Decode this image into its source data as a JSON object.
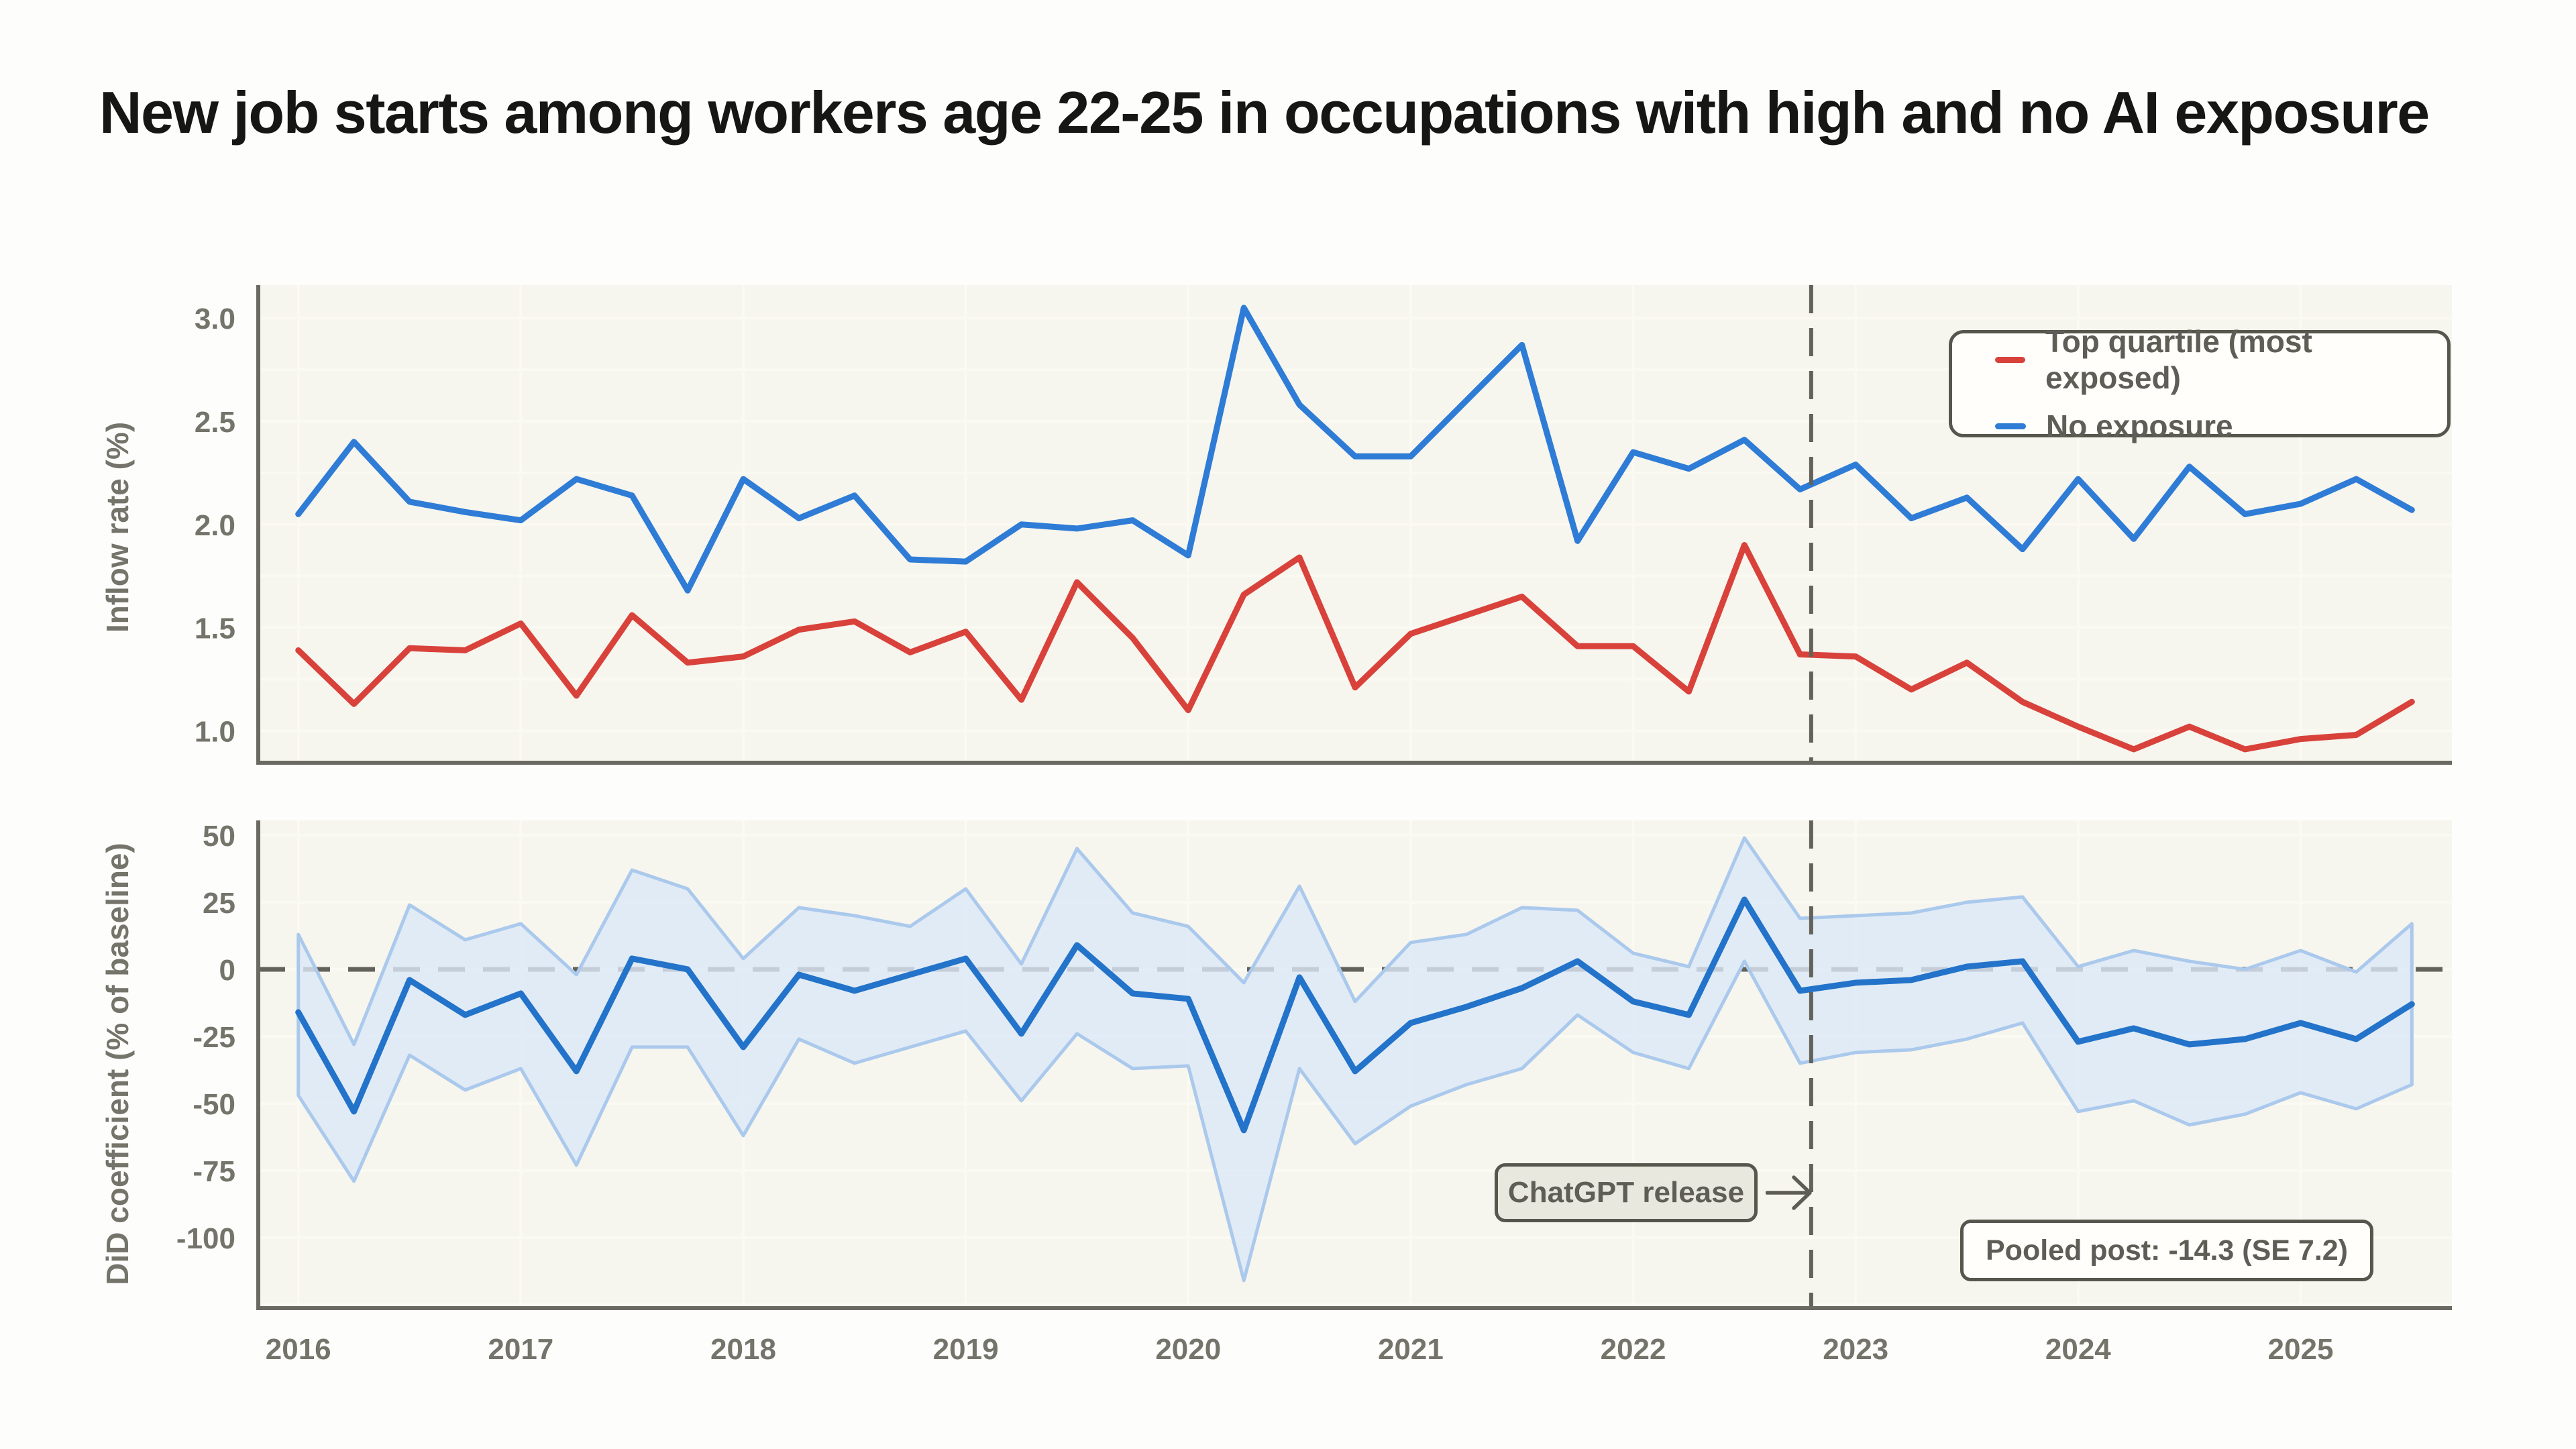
{
  "title": "New job starts among workers age 22-25 in occupations with high and no AI exposure",
  "legend": {
    "items": [
      {
        "label": "Top quartile (most exposed)",
        "color": "#d8423b"
      },
      {
        "label": "No exposure",
        "color": "#2e7cd6"
      }
    ]
  },
  "annotations": {
    "chatgpt_label": "ChatGPT release",
    "pooled_note": "Pooled post: -14.3 (SE 7.2)"
  },
  "colors": {
    "page_bg": "#fdfdfb",
    "plot_bg": "#f6f5ee",
    "grid": "#fbfaf2",
    "spine": "#6b6a62",
    "dashed": "#63625a",
    "tick_text": "#75746b",
    "red": "#d8423b",
    "blue": "#2e7cd6",
    "did_line": "#2273c9",
    "band_fill": "#dce9f7",
    "band_edge": "#aac9ec"
  },
  "chart_data": [
    {
      "type": "line",
      "panel": "top",
      "ylabel": "Inflow rate (%)",
      "x_start": 2016.0,
      "x_step": 0.25,
      "xlim": [
        2015.82,
        2025.68
      ],
      "ylim": [
        0.845,
        3.16
      ],
      "xticks": [
        2016,
        2017,
        2018,
        2019,
        2020,
        2021,
        2022,
        2023,
        2024,
        2025
      ],
      "yticks": [
        3.0,
        2.5,
        2.0,
        1.5,
        1.0
      ],
      "grid_step": 0.25,
      "show_xtick_labels": false,
      "vline_x": 2022.8,
      "series": [
        {
          "name": "Top quartile (most exposed)",
          "color": "#d8423b",
          "values": [
            1.39,
            1.13,
            1.4,
            1.39,
            1.52,
            1.17,
            1.56,
            1.33,
            1.36,
            1.49,
            1.53,
            1.38,
            1.48,
            1.15,
            1.72,
            1.45,
            1.1,
            1.66,
            1.84,
            1.21,
            1.47,
            1.56,
            1.65,
            1.41,
            1.41,
            1.19,
            1.9,
            1.37,
            1.36,
            1.2,
            1.33,
            1.14,
            1.02,
            0.91,
            1.02,
            0.91,
            0.96,
            0.98,
            1.14
          ]
        },
        {
          "name": "No exposure",
          "color": "#2e7cd6",
          "values": [
            2.05,
            2.4,
            2.11,
            2.06,
            2.02,
            2.22,
            2.14,
            1.68,
            2.22,
            2.03,
            2.14,
            1.83,
            1.82,
            2.0,
            1.98,
            2.02,
            1.85,
            3.05,
            2.58,
            2.33,
            2.33,
            2.6,
            2.87,
            1.92,
            2.35,
            2.27,
            2.41,
            2.17,
            2.29,
            2.03,
            2.13,
            1.88,
            2.22,
            1.93,
            2.28,
            2.05,
            2.1,
            2.22,
            2.07
          ]
        }
      ]
    },
    {
      "type": "line",
      "panel": "bottom",
      "ylabel": "DiD coefficient (% of baseline)",
      "x_start": 2016.0,
      "x_step": 0.25,
      "xlim": [
        2015.82,
        2025.68
      ],
      "ylim": [
        -126.3,
        55.5
      ],
      "xticks": [
        2016,
        2017,
        2018,
        2019,
        2020,
        2021,
        2022,
        2023,
        2024,
        2025
      ],
      "yticks": [
        50,
        25,
        0,
        -25,
        -50,
        -75,
        -100
      ],
      "grid_step": 25,
      "show_xtick_labels": true,
      "vline_x": 2022.8,
      "hline_y": 0,
      "vline_label": "ChatGPT release",
      "note": "Pooled post: -14.3 (SE 7.2)",
      "pooled_post": {
        "estimate": -14.3,
        "se": 7.2
      },
      "series": [
        {
          "name": "DiD coefficient",
          "color": "#2273c9",
          "values": [
            -16,
            -53,
            -4,
            -17,
            -9,
            -38,
            4,
            0,
            -29,
            -2,
            -8,
            -2,
            4,
            -24,
            9,
            -9,
            -11,
            -60,
            -3,
            -38,
            -20,
            -14,
            -7,
            3,
            -12,
            -17,
            26,
            -8,
            -5,
            -4,
            1,
            3,
            -27,
            -22,
            -28,
            -26,
            -20,
            -26,
            -13
          ],
          "band": {
            "fill": "#dce9f7",
            "edge": "#aac9ec",
            "upper": [
              13,
              -28,
              24,
              11,
              17,
              -2,
              37,
              30,
              4,
              23,
              20,
              16,
              30,
              2,
              45,
              21,
              16,
              -5,
              31,
              -12,
              10,
              13,
              23,
              22,
              6,
              1,
              49,
              19,
              20,
              21,
              25,
              27,
              1,
              7,
              3,
              0,
              7,
              -1,
              17
            ],
            "lower": [
              -47,
              -79,
              -32,
              -45,
              -37,
              -73,
              -29,
              -29,
              -62,
              -26,
              -35,
              -29,
              -23,
              -49,
              -24,
              -37,
              -36,
              -116,
              -37,
              -65,
              -51,
              -43,
              -37,
              -17,
              -31,
              -37,
              3,
              -35,
              -31,
              -30,
              -26,
              -20,
              -53,
              -49,
              -58,
              -54,
              -46,
              -52,
              -43
            ]
          }
        }
      ]
    }
  ]
}
